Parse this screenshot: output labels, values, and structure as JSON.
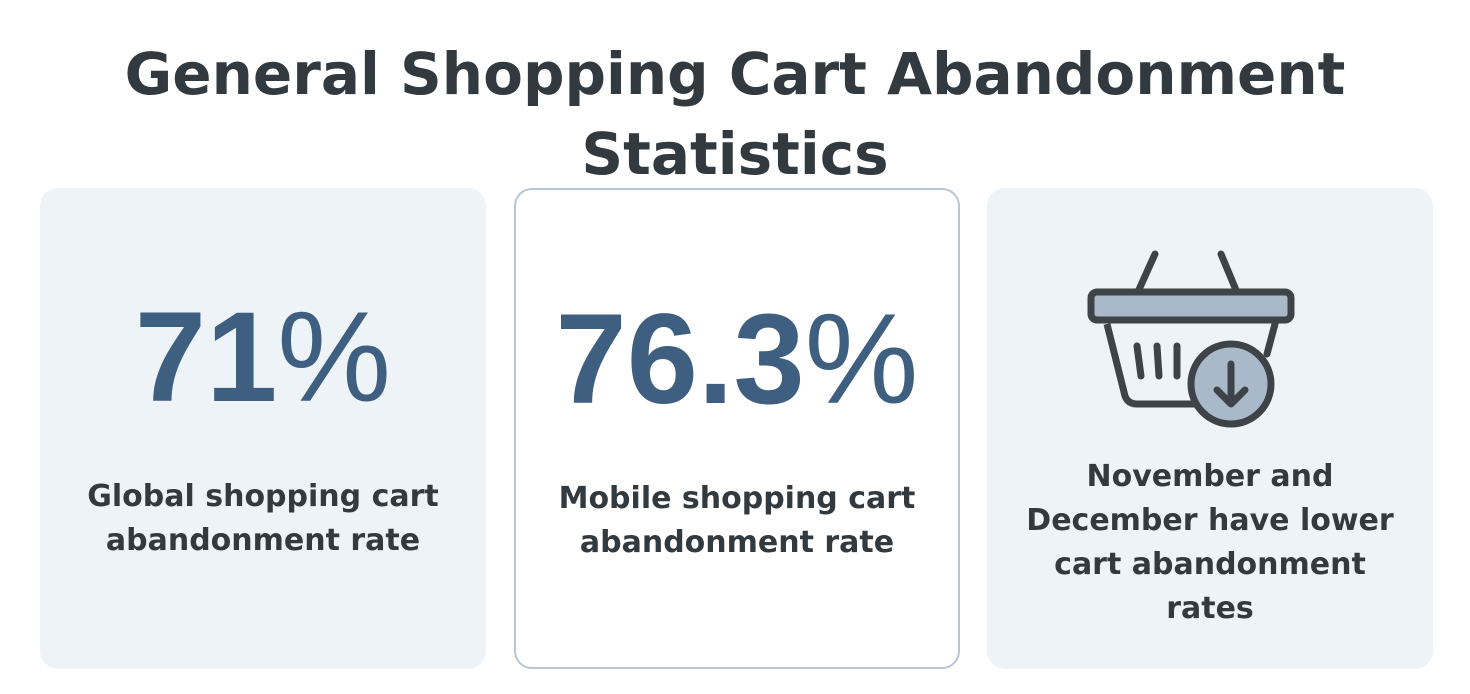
{
  "title": "General Shopping Cart Abandonment Statistics",
  "cards": [
    {
      "stat_number": "71",
      "stat_suffix": "%",
      "caption": "Global shopping cart abandonment rate"
    },
    {
      "stat_number": "76.3",
      "stat_suffix": "%",
      "caption": "Mobile shopping cart abandonment rate"
    },
    {
      "icon": "shopping-basket-download-icon",
      "caption": "November and December have lower cart abandonment rates"
    }
  ],
  "colors": {
    "title_text": "#333a3f",
    "stat_text": "#3e5f80",
    "card_background": "#eef3f8",
    "card_border": "#b9c5d1",
    "icon_stroke": "#3d4347",
    "icon_fill": "#a9b9c9"
  }
}
